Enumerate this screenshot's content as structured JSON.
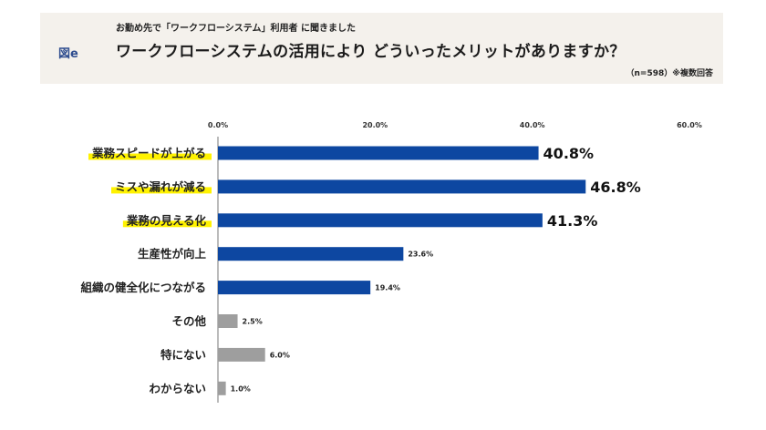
{
  "header": {
    "figure_label": "図e",
    "subtitle": "お勤め先で「ワークフローシステム」利用者 に聞きました",
    "title": "ワークフローシステムの活用により どういったメリットがありますか？",
    "note": "（n=598）※複数回答"
  },
  "colors": {
    "primary_bar": "#0d47a1",
    "secondary_bar": "#9e9e9e",
    "highlight": "#fff200",
    "header_bg": "#f4f1ec"
  },
  "chart_data": {
    "type": "bar",
    "orientation": "horizontal",
    "xlim": [
      0,
      60
    ],
    "ticks": [
      "0.0%",
      "20.0%",
      "40.0%",
      "60.0%"
    ],
    "tick_values": [
      0,
      20,
      40,
      60
    ],
    "grid": false,
    "categories": [
      "業務スピードが上がる",
      "ミスや漏れが減る",
      "業務の見える化",
      "生産性が向上",
      "組織の健全化につながる",
      "その他",
      "特にない",
      "わからない"
    ],
    "values": [
      40.8,
      46.8,
      41.3,
      23.6,
      19.4,
      2.5,
      6.0,
      1.0
    ],
    "value_labels": [
      "40.8%",
      "46.8%",
      "41.3%",
      "23.6%",
      "19.4%",
      "2.5%",
      "6.0%",
      "1.0%"
    ],
    "emphasized": [
      true,
      true,
      true,
      false,
      false,
      false,
      false,
      false
    ],
    "bar_color_group": [
      "primary",
      "primary",
      "primary",
      "primary",
      "primary",
      "secondary",
      "secondary",
      "secondary"
    ]
  }
}
